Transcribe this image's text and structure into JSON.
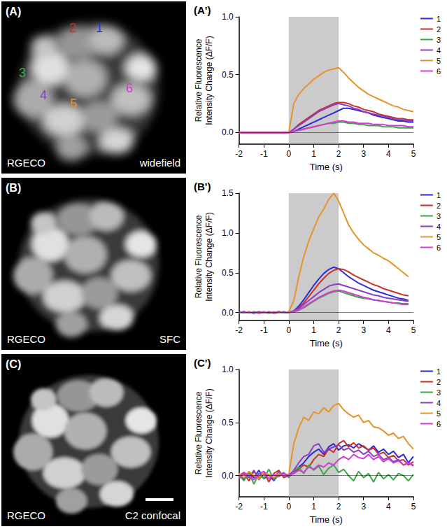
{
  "chart_data": [
    {
      "type": "line",
      "title": "(A')",
      "x_label": "Time (s)",
      "y_label": "Relative Fluorescence\nIntensity Change (ΔF/F)",
      "x": [
        -2,
        -1.8,
        -1.6,
        -1.4,
        -1.2,
        -1,
        -0.8,
        -0.6,
        -0.4,
        -0.2,
        0,
        0.2,
        0.4,
        0.6,
        0.8,
        1,
        1.2,
        1.4,
        1.6,
        1.8,
        2,
        2.2,
        2.4,
        2.6,
        2.8,
        3,
        3.2,
        3.4,
        3.6,
        3.8,
        4,
        4.2,
        4.4,
        4.6,
        4.8,
        5
      ],
      "xlim": [
        -2,
        5
      ],
      "xticks": [
        -2,
        -1,
        0,
        1,
        2,
        3,
        4,
        5
      ],
      "ylim": [
        -0.1,
        1.0
      ],
      "yticks": [
        {
          "value": 0,
          "label": "0.0"
        },
        {
          "value": 0.5,
          "label": "0.5"
        },
        {
          "value": 1,
          "label": "1.0"
        }
      ],
      "grid": false,
      "legend": "right",
      "shaded_region": {
        "x": [
          0,
          2
        ]
      },
      "reference_line": {
        "y": 0,
        "line_style": "dotted"
      },
      "series": [
        {
          "name": "1",
          "color": "#2b2bd9",
          "values": [
            0,
            0,
            0,
            0,
            0,
            0,
            0,
            0,
            0,
            0,
            0,
            0.01,
            0.03,
            0.05,
            0.07,
            0.09,
            0.11,
            0.13,
            0.15,
            0.17,
            0.19,
            0.21,
            0.21,
            0.2,
            0.19,
            0.18,
            0.17,
            0.15,
            0.14,
            0.13,
            0.12,
            0.11,
            0.1,
            0.1,
            0.09,
            0.09
          ]
        },
        {
          "name": "2",
          "color": "#c9302c",
          "values": [
            0,
            0,
            0,
            0,
            0,
            0,
            0,
            0,
            0,
            0,
            0,
            0.03,
            0.07,
            0.1,
            0.13,
            0.16,
            0.19,
            0.21,
            0.23,
            0.25,
            0.26,
            0.26,
            0.25,
            0.23,
            0.22,
            0.2,
            0.19,
            0.18,
            0.16,
            0.15,
            0.14,
            0.13,
            0.12,
            0.12,
            0.11,
            0.11
          ]
        },
        {
          "name": "3",
          "color": "#3aa848",
          "values": [
            0,
            0,
            0,
            0,
            0,
            0,
            0,
            0,
            0,
            0,
            0,
            0.01,
            0.02,
            0.03,
            0.04,
            0.05,
            0.06,
            0.07,
            0.08,
            0.08,
            0.09,
            0.09,
            0.08,
            0.08,
            0.07,
            0.07,
            0.06,
            0.06,
            0.06,
            0.05,
            0.05,
            0.05,
            0.04,
            0.04,
            0.04,
            0.04
          ]
        },
        {
          "name": "4",
          "color": "#8a3fc2",
          "values": [
            0,
            0,
            0,
            0,
            0,
            0,
            0,
            0,
            0,
            0,
            0,
            0.03,
            0.06,
            0.09,
            0.12,
            0.15,
            0.18,
            0.2,
            0.22,
            0.24,
            0.25,
            0.24,
            0.23,
            0.21,
            0.2,
            0.18,
            0.17,
            0.16,
            0.15,
            0.14,
            0.13,
            0.12,
            0.11,
            0.11,
            0.1,
            0.1
          ]
        },
        {
          "name": "5",
          "color": "#e8922a",
          "values": [
            0,
            0,
            0,
            0,
            0,
            0,
            0,
            0,
            0,
            0,
            0,
            0.25,
            0.33,
            0.38,
            0.42,
            0.46,
            0.49,
            0.52,
            0.54,
            0.55,
            0.56,
            0.52,
            0.47,
            0.43,
            0.39,
            0.36,
            0.33,
            0.31,
            0.29,
            0.27,
            0.25,
            0.23,
            0.22,
            0.2,
            0.19,
            0.18
          ]
        },
        {
          "name": "6",
          "color": "#d63ad6",
          "values": [
            0,
            0,
            0,
            0,
            0,
            0,
            0,
            0,
            0,
            0,
            0,
            0.01,
            0.02,
            0.03,
            0.04,
            0.05,
            0.06,
            0.07,
            0.08,
            0.09,
            0.1,
            0.1,
            0.09,
            0.09,
            0.08,
            0.08,
            0.08,
            0.07,
            0.07,
            0.07,
            0.06,
            0.06,
            0.06,
            0.06,
            0.05,
            0.05
          ]
        }
      ]
    },
    {
      "type": "line",
      "title": "(B')",
      "x_label": "Time (s)",
      "y_label": "Relative Fluorescence\nIntensity Change (ΔF/F)",
      "x": [
        -2,
        -1.8,
        -1.6,
        -1.4,
        -1.2,
        -1,
        -0.8,
        -0.6,
        -0.4,
        -0.2,
        0,
        0.2,
        0.4,
        0.6,
        0.8,
        1,
        1.2,
        1.4,
        1.6,
        1.8,
        2,
        2.2,
        2.4,
        2.6,
        2.8,
        3,
        3.2,
        3.4,
        3.6,
        3.8,
        4,
        4.2,
        4.4,
        4.6,
        4.8
      ],
      "xlim": [
        -2,
        5
      ],
      "xticks": [
        -2,
        -1,
        0,
        1,
        2,
        3,
        4,
        5
      ],
      "ylim": [
        -0.1,
        1.5
      ],
      "yticks": [
        {
          "value": 0,
          "label": "0.0"
        },
        {
          "value": 0.5,
          "label": "0.5"
        },
        {
          "value": 1,
          "label": "1.0"
        },
        {
          "value": 1.5,
          "label": "1.5"
        }
      ],
      "grid": false,
      "legend": "right",
      "shaded_region": {
        "x": [
          0,
          2
        ]
      },
      "reference_line": {
        "y": 0,
        "line_style": "dotted"
      },
      "series": [
        {
          "name": "1",
          "color": "#2b2bd9",
          "values": [
            0,
            0.01,
            0,
            -0.01,
            0,
            0.01,
            0,
            0,
            0.01,
            0,
            0,
            0.02,
            0.08,
            0.16,
            0.25,
            0.34,
            0.42,
            0.49,
            0.54,
            0.57,
            0.55,
            0.5,
            0.45,
            0.41,
            0.37,
            0.34,
            0.31,
            0.28,
            0.26,
            0.24,
            0.22,
            0.2,
            0.18,
            0.17,
            0.15
          ]
        },
        {
          "name": "2",
          "color": "#c9302c",
          "values": [
            0,
            0,
            0.01,
            0,
            -0.01,
            0,
            0.01,
            0,
            0,
            0.01,
            0,
            0.02,
            0.06,
            0.12,
            0.2,
            0.28,
            0.36,
            0.43,
            0.49,
            0.53,
            0.55,
            0.54,
            0.51,
            0.47,
            0.44,
            0.41,
            0.38,
            0.35,
            0.33,
            0.3,
            0.28,
            0.26,
            0.24,
            0.22,
            0.21
          ]
        },
        {
          "name": "3",
          "color": "#3aa848",
          "values": [
            0,
            0,
            0,
            0.01,
            0,
            0,
            -0.01,
            0,
            0.01,
            0,
            0,
            0.01,
            0.03,
            0.06,
            0.1,
            0.14,
            0.18,
            0.21,
            0.24,
            0.26,
            0.27,
            0.25,
            0.23,
            0.21,
            0.19,
            0.18,
            0.17,
            0.16,
            0.15,
            0.14,
            0.13,
            0.12,
            0.12,
            0.11,
            0.11
          ]
        },
        {
          "name": "4",
          "color": "#8a3fc2",
          "values": [
            0,
            0.01,
            0,
            0,
            0.01,
            0,
            0,
            -0.01,
            0,
            0,
            0,
            0.02,
            0.05,
            0.1,
            0.15,
            0.2,
            0.25,
            0.29,
            0.33,
            0.35,
            0.36,
            0.34,
            0.32,
            0.3,
            0.28,
            0.26,
            0.24,
            0.22,
            0.21,
            0.19,
            0.18,
            0.17,
            0.16,
            0.15,
            0.14
          ]
        },
        {
          "name": "5",
          "color": "#e8922a",
          "values": [
            0,
            0,
            0.01,
            0,
            0,
            0.01,
            0,
            0.01,
            0,
            0,
            0.01,
            0.15,
            0.45,
            0.7,
            0.9,
            1.05,
            1.2,
            1.3,
            1.42,
            1.5,
            1.4,
            1.25,
            1.1,
            1.0,
            0.92,
            0.85,
            0.8,
            0.75,
            0.72,
            0.68,
            0.65,
            0.6,
            0.55,
            0.5,
            0.45
          ]
        },
        {
          "name": "6",
          "color": "#d63ad6",
          "values": [
            0,
            0,
            0,
            0,
            0.01,
            0,
            0,
            0,
            0.01,
            0,
            0,
            0.01,
            0.03,
            0.07,
            0.11,
            0.15,
            0.19,
            0.22,
            0.25,
            0.27,
            0.28,
            0.27,
            0.25,
            0.23,
            0.21,
            0.19,
            0.18,
            0.16,
            0.15,
            0.14,
            0.13,
            0.12,
            0.11,
            0.1,
            0.1
          ]
        }
      ]
    },
    {
      "type": "line",
      "title": "(C')",
      "x_label": "Time (s)",
      "y_label": "Relative Fluorescence\nIntensity Change (ΔF/F)",
      "x": [
        -2,
        -1.8,
        -1.6,
        -1.4,
        -1.2,
        -1,
        -0.8,
        -0.6,
        -0.4,
        -0.2,
        0,
        0.2,
        0.4,
        0.6,
        0.8,
        1,
        1.2,
        1.4,
        1.6,
        1.8,
        2,
        2.2,
        2.4,
        2.6,
        2.8,
        3,
        3.2,
        3.4,
        3.6,
        3.8,
        4,
        4.2,
        4.4,
        4.6,
        4.8,
        5
      ],
      "xlim": [
        -2,
        5
      ],
      "xticks": [
        -2,
        -1,
        0,
        1,
        2,
        3,
        4,
        5
      ],
      "ylim": [
        -0.2,
        1.0
      ],
      "yticks": [
        {
          "value": 0,
          "label": "0.0"
        },
        {
          "value": 0.5,
          "label": "0.5"
        },
        {
          "value": 1,
          "label": "1.0"
        }
      ],
      "grid": false,
      "legend": "right",
      "shaded_region": {
        "x": [
          0,
          2
        ]
      },
      "reference_line": {
        "y": 0,
        "line_style": "dotted"
      },
      "series": [
        {
          "name": "1",
          "color": "#2b2bd9",
          "values": [
            0.02,
            -0.04,
            0.03,
            -0.02,
            0.05,
            -0.03,
            0.01,
            -0.05,
            0.02,
            0,
            0.01,
            0.03,
            0.08,
            0.12,
            0.18,
            0.22,
            0.25,
            0.2,
            0.27,
            0.3,
            0.24,
            0.28,
            0.29,
            0.26,
            0.3,
            0.27,
            0.24,
            0.28,
            0.22,
            0.25,
            0.2,
            0.23,
            0.17,
            0.2,
            0.12,
            0.18
          ]
        },
        {
          "name": "2",
          "color": "#c9302c",
          "values": [
            -0.03,
            0.02,
            -0.05,
            0.04,
            -0.02,
            0.03,
            -0.06,
            0.02,
            0.05,
            -0.02,
            0,
            0.02,
            0.06,
            0.1,
            0.08,
            0.15,
            0.2,
            0.18,
            0.25,
            0.22,
            0.3,
            0.33,
            0.27,
            0.31,
            0.26,
            0.28,
            0.24,
            0.26,
            0.2,
            0.22,
            0.17,
            0.19,
            0.14,
            0.15,
            0.1,
            0.13
          ]
        },
        {
          "name": "3",
          "color": "#3aa848",
          "values": [
            0.01,
            -0.05,
            0.03,
            -0.08,
            0.02,
            -0.03,
            0.06,
            -0.04,
            0,
            0.03,
            -0.02,
            0.04,
            0.08,
            0.02,
            0.1,
            0.05,
            0.09,
            0.01,
            0.07,
            0.1,
            0.03,
            0.06,
            0,
            -0.05,
            0.04,
            -0.02,
            0.02,
            -0.06,
            0.03,
            -0.03,
            0.01,
            -0.04,
            0.02,
            0,
            -0.05,
            0.01
          ]
        },
        {
          "name": "4",
          "color": "#8a3fc2",
          "values": [
            0,
            0.03,
            -0.02,
            0.05,
            -0.04,
            0.02,
            0.01,
            -0.03,
            0.04,
            -0.01,
            0,
            0.05,
            0.12,
            0.18,
            0.2,
            0.28,
            0.3,
            0.22,
            0.25,
            0.27,
            0.29,
            0.24,
            0.26,
            0.22,
            0.24,
            0.2,
            0.23,
            0.18,
            0.2,
            0.15,
            0.17,
            0.13,
            0.15,
            0.1,
            0.12,
            0.09
          ]
        },
        {
          "name": "5",
          "color": "#e8922a",
          "values": [
            0.02,
            -0.02,
            0.04,
            0,
            -0.03,
            0.03,
            0.01,
            -0.02,
            0.02,
            0,
            0.01,
            0.3,
            0.45,
            0.55,
            0.52,
            0.6,
            0.58,
            0.64,
            0.6,
            0.66,
            0.68,
            0.62,
            0.58,
            0.55,
            0.57,
            0.5,
            0.52,
            0.46,
            0.45,
            0.42,
            0.38,
            0.4,
            0.35,
            0.37,
            0.3,
            0.25
          ]
        },
        {
          "name": "6",
          "color": "#d63ad6",
          "values": [
            -0.02,
            0.03,
            0,
            -0.04,
            0.02,
            0.04,
            -0.03,
            0.01,
            -0.01,
            0.02,
            0,
            0.02,
            0.05,
            0.03,
            0.08,
            0.06,
            0.1,
            0.08,
            0.12,
            0.1,
            0.15,
            0.18,
            0.15,
            0.2,
            0.17,
            0.16,
            0.2,
            0.15,
            0.18,
            0.13,
            0.16,
            0.12,
            0.14,
            0.1,
            0.12,
            0.1
          ]
        }
      ]
    }
  ],
  "image_panels": [
    {
      "label": "(A)",
      "text_left": "RGECO",
      "text_right": "widefield",
      "roi_labels": [
        "1",
        "2",
        "3",
        "4",
        "5",
        "6"
      ]
    },
    {
      "label": "(B)",
      "text_left": "RGECO",
      "text_right": "SFC"
    },
    {
      "label": "(C)",
      "text_left": "RGECO",
      "text_right": "C2 confocal"
    }
  ]
}
